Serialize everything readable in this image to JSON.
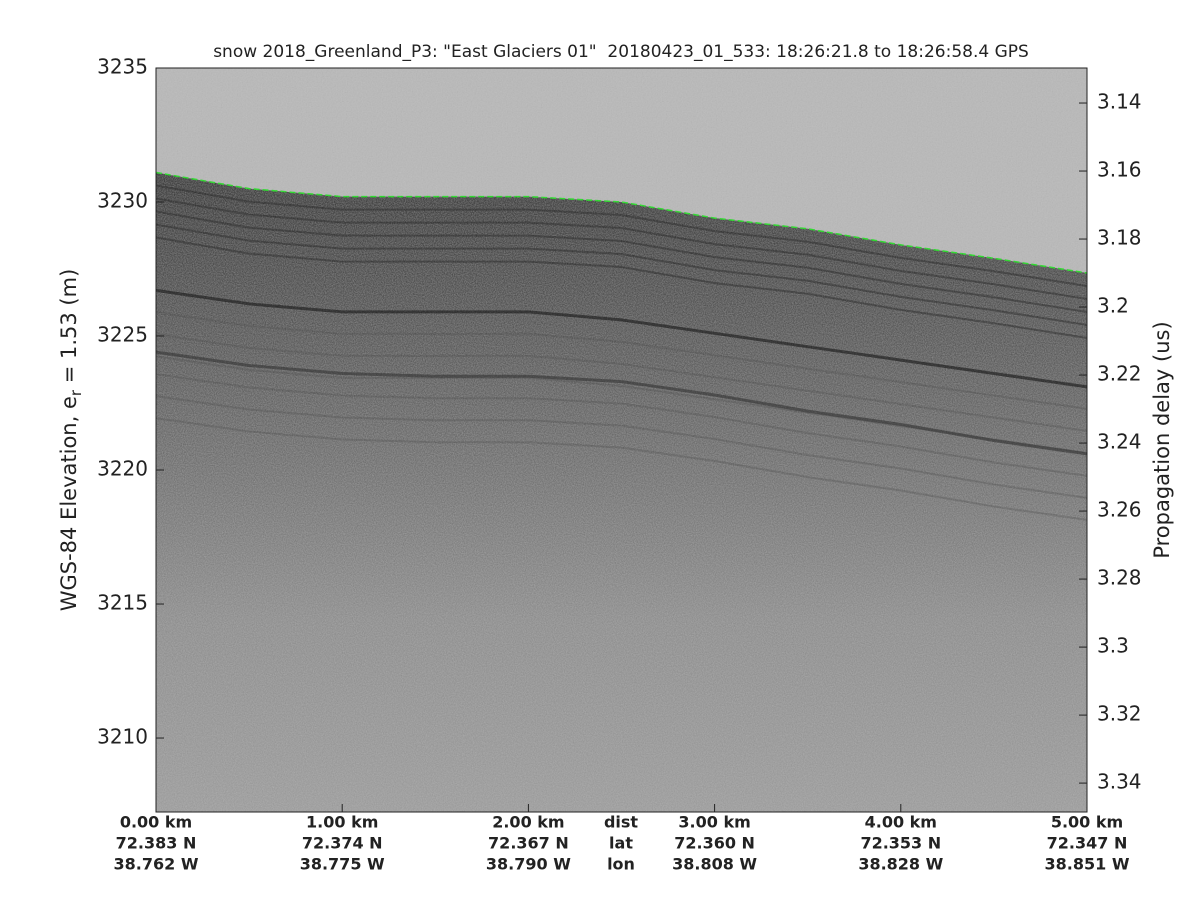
{
  "chart_data": {
    "type": "echogram",
    "title": "snow 2018_Greenland_P3: \"East Glaciers 01\"  20180423_01_533: 18:26:21.8 to 18:26:58.4 GPS",
    "ylabel": "WGS-84 Elevation, e",
    "ylabel_sub": "r",
    "ylabel_end": " = 1.53 (m)",
    "y2label": "Propagation delay (us)",
    "xlim": [
      0,
      5
    ],
    "xticks": [
      {
        "value": 0,
        "label": "0.00 km"
      },
      {
        "value": 1,
        "label": "1.00 km"
      },
      {
        "value": 2,
        "label": "2.00 km"
      },
      {
        "value": 3,
        "label": "3.00 km"
      },
      {
        "value": 4,
        "label": "4.00 km"
      },
      {
        "value": 5,
        "label": "5.00 km"
      }
    ],
    "lat_labels": [
      "72.383 N",
      "72.374 N",
      "72.367 N",
      "72.360 N",
      "72.353 N",
      "72.347 N"
    ],
    "lon_labels": [
      "38.762 W",
      "38.775 W",
      "38.790 W",
      "38.808 W",
      "38.828 W",
      "38.851 W"
    ],
    "row_labels": [
      "dist",
      "lat",
      "lon"
    ],
    "ylim": [
      3207.24,
      3235
    ],
    "yticks": [
      3210,
      3215,
      3220,
      3225,
      3230,
      3235
    ],
    "y2lim": [
      3.3485,
      3.1297
    ],
    "y2ticks": [
      3.14,
      3.16,
      3.18,
      3.2,
      3.22,
      3.24,
      3.26,
      3.28,
      3.3,
      3.32,
      3.34
    ],
    "x": [
      0,
      0.5,
      1,
      1.5,
      2,
      2.5,
      3,
      3.5,
      4,
      4.5,
      5
    ],
    "surface": {
      "color": "#22dd22",
      "values": [
        3231.1,
        3230.5,
        3230.2,
        3230.2,
        3230.2,
        3230.0,
        3229.4,
        3229.0,
        3228.4,
        3227.9,
        3227.35
      ]
    },
    "layers": [
      {
        "color": "#1a1a1a",
        "values": [
          3226.7,
          3226.2,
          3225.9,
          3225.9,
          3225.9,
          3225.6,
          3225.1,
          3224.6,
          3224.1,
          3223.6,
          3223.1
        ]
      },
      {
        "color": "#333333",
        "values": [
          3224.4,
          3223.9,
          3223.6,
          3223.5,
          3223.5,
          3223.3,
          3222.8,
          3222.2,
          3221.7,
          3221.1,
          3220.6
        ]
      }
    ]
  }
}
